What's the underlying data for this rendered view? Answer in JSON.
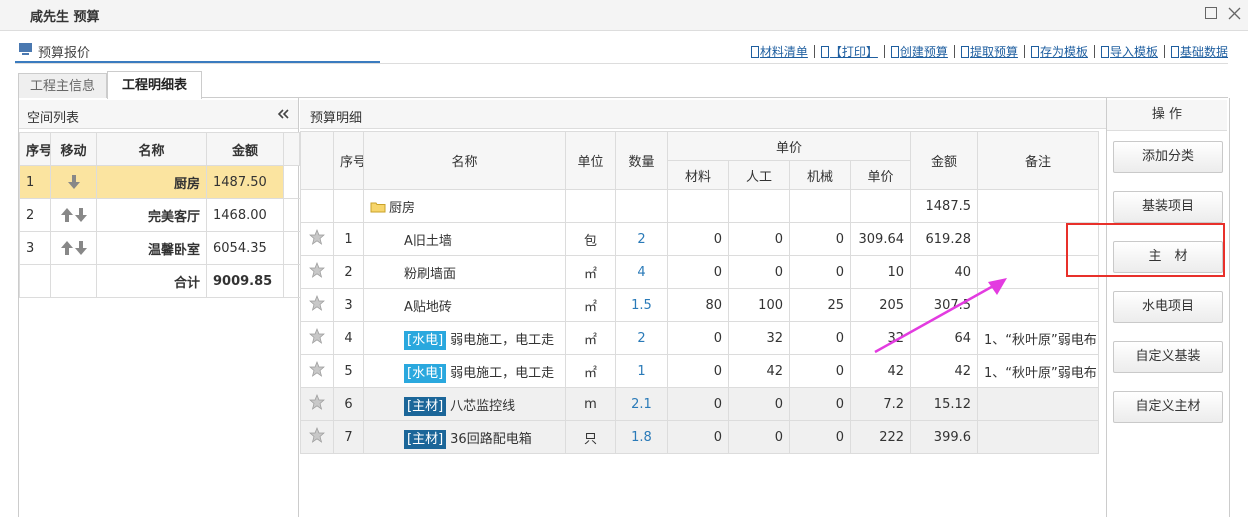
{
  "window": {
    "title": "咸先生 预算"
  },
  "section": {
    "title": "预算报价"
  },
  "toolbar": [
    "材料清单",
    "【打印】",
    "创建预算",
    "提取预算",
    "存为模板",
    "导入模板",
    "基础数据"
  ],
  "tabs": [
    "工程主信息",
    "工程明细表"
  ],
  "spaces": {
    "title": "空间列表",
    "columns": [
      "序号",
      "移动",
      "名称",
      "金额"
    ],
    "rows": [
      [
        "1",
        "厨房",
        "1487.50"
      ],
      [
        "2",
        "完美客厅",
        "1468.00"
      ],
      [
        "3",
        "温馨卧室",
        "6054.35"
      ]
    ],
    "total": {
      "label": "合计",
      "amount": "9009.85"
    }
  },
  "detail": {
    "title": "预算明细",
    "columns": {
      "no": "序号",
      "name": "名称",
      "unit": "单位",
      "qty": "数量",
      "unit_price": "单价",
      "material": "材料",
      "labor": "人工",
      "machine": "机械",
      "price": "单价",
      "amount": "金额",
      "note": "备注"
    },
    "category": {
      "name": "厨房",
      "amount": "1487.5"
    },
    "rows": [
      {
        "no": "1",
        "name": "A旧土墙",
        "unit": "包",
        "qty": "2",
        "material": "0",
        "labor": "0",
        "machine": "0",
        "price": "309.64",
        "amount": "619.28"
      },
      {
        "no": "2",
        "name": "粉刷墙面",
        "unit": "㎡",
        "qty": "4",
        "material": "0",
        "labor": "0",
        "machine": "0",
        "price": "10",
        "amount": "40"
      },
      {
        "no": "3",
        "name": "A贴地砖",
        "unit": "㎡",
        "qty": "1.5",
        "material": "80",
        "labor": "100",
        "machine": "25",
        "price": "205",
        "amount": "307.5"
      },
      {
        "no": "4",
        "tag": "[水电]",
        "name": "弱电施工，电工走",
        "unit": "㎡",
        "qty": "2",
        "material": "0",
        "labor": "32",
        "machine": "0",
        "price": "32",
        "amount": "64",
        "note": "1、“秋叶原”弱电布"
      },
      {
        "no": "5",
        "tag": "[水电]",
        "name": "弱电施工，电工走",
        "unit": "㎡",
        "qty": "1",
        "material": "0",
        "labor": "42",
        "machine": "0",
        "price": "42",
        "amount": "42",
        "note": "1、“秋叶原”弱电布"
      },
      {
        "no": "6",
        "tag": "[主材]",
        "name": "八芯监控线",
        "unit": "m",
        "qty": "2.1",
        "material": "0",
        "labor": "0",
        "machine": "0",
        "price": "7.2",
        "amount": "15.12"
      },
      {
        "no": "7",
        "tag": "[主材]",
        "name": "36回路配电箱",
        "unit": "只",
        "qty": "1.8",
        "material": "0",
        "labor": "0",
        "machine": "0",
        "price": "222",
        "amount": "399.6"
      }
    ]
  },
  "actions": {
    "title": "操 作",
    "buttons": [
      "添加分类",
      "基装项目",
      "主　材",
      "水电项目",
      "自定义基装",
      "自定义主材"
    ]
  }
}
